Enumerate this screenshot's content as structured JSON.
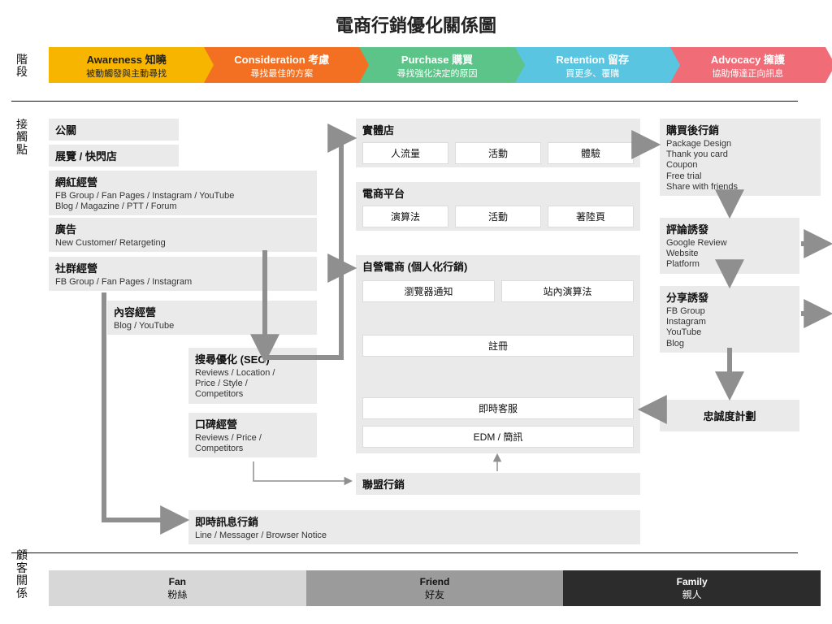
{
  "title": "電商行銷優化關係圖",
  "side_labels": {
    "stage": "階段",
    "touch": "接觸點",
    "rel": "顧客關係"
  },
  "stages": [
    {
      "title": "Awareness 知曉",
      "sub": "被動觸發與主動尋找",
      "color": "#f7b500",
      "dark": true
    },
    {
      "title": "Consideration 考慮",
      "sub": "尋找最佳的方案",
      "color": "#f36f21"
    },
    {
      "title": "Purchase 購買",
      "sub": "尋找強化決定的原因",
      "color": "#5cc489"
    },
    {
      "title": "Retention 留存",
      "sub": "買更多、覆購",
      "color": "#5ac5e0"
    },
    {
      "title": "Advocacy 擁護",
      "sub": "協助傳達正向訊息",
      "color": "#f06d78"
    }
  ],
  "left_boxes": {
    "pr": {
      "title": "公關"
    },
    "expo": {
      "title": "展覽 / 快閃店"
    },
    "kol": {
      "title": "網紅經營",
      "sub": "FB Group / Fan Pages / Instagram / YouTube\nBlog / Magazine / PTT / Forum"
    },
    "ads": {
      "title": "廣告",
      "sub": "New Customer/ Retargeting"
    },
    "social": {
      "title": "社群經營",
      "sub": "FB Group / Fan Pages / Instagram"
    },
    "content": {
      "title": "內容經營",
      "sub": "Blog / YouTube"
    },
    "seo": {
      "title": "搜尋優化 (SEO)",
      "sub": "Reviews / Location /\nPrice / Style /\nCompetitors"
    },
    "wom": {
      "title": "口碑經營",
      "sub": "Reviews / Price /\nCompetitors"
    },
    "im": {
      "title": "即時訊息行銷",
      "sub": "Line / Messager / Browser Notice"
    }
  },
  "mid_boxes": {
    "store": {
      "title": "實體店",
      "items": [
        "人流量",
        "活動",
        "體驗"
      ]
    },
    "platform": {
      "title": "電商平台",
      "items": [
        "演算法",
        "活動",
        "著陸頁"
      ]
    },
    "self": {
      "title": "自營電商 (個人化行銷)",
      "row1": [
        "瀏覽器通知",
        "站內演算法"
      ],
      "reg": "註冊",
      "cs": "即時客服",
      "edm": "EDM / 簡訊"
    },
    "aff": {
      "title": "聯盟行銷"
    }
  },
  "right_boxes": {
    "postbuy": {
      "title": "購買後行銷",
      "sub": "Package Design\nThank you card\nCoupon\nFree trial\nShare with friends"
    },
    "review": {
      "title": "評論誘發",
      "sub": "Google Review\nWebsite\nPlatform"
    },
    "share": {
      "title": "分享誘發",
      "sub": "FB Group\nInstagram\nYouTube\nBlog"
    },
    "loyalty": {
      "title": "忠誠度計劃"
    }
  },
  "relations": [
    {
      "title": "Fan",
      "sub": "粉絲",
      "bg": "#d7d7d7",
      "fg": "#111"
    },
    {
      "title": "Friend",
      "sub": "好友",
      "bg": "#9b9b9b",
      "fg": "#111"
    },
    {
      "title": "Family",
      "sub": "親人",
      "bg": "#2c2c2c",
      "fg": "#fff"
    }
  ],
  "styling": {
    "box_bg": "#eaeaea",
    "inner_bg": "#ffffff",
    "arrow_color": "#8f8f8f",
    "arrow_width": 6,
    "thin_arrow_width": 1.5,
    "page_bg": "#ffffff",
    "title_fontsize": 22,
    "label_fontsize": 12
  }
}
